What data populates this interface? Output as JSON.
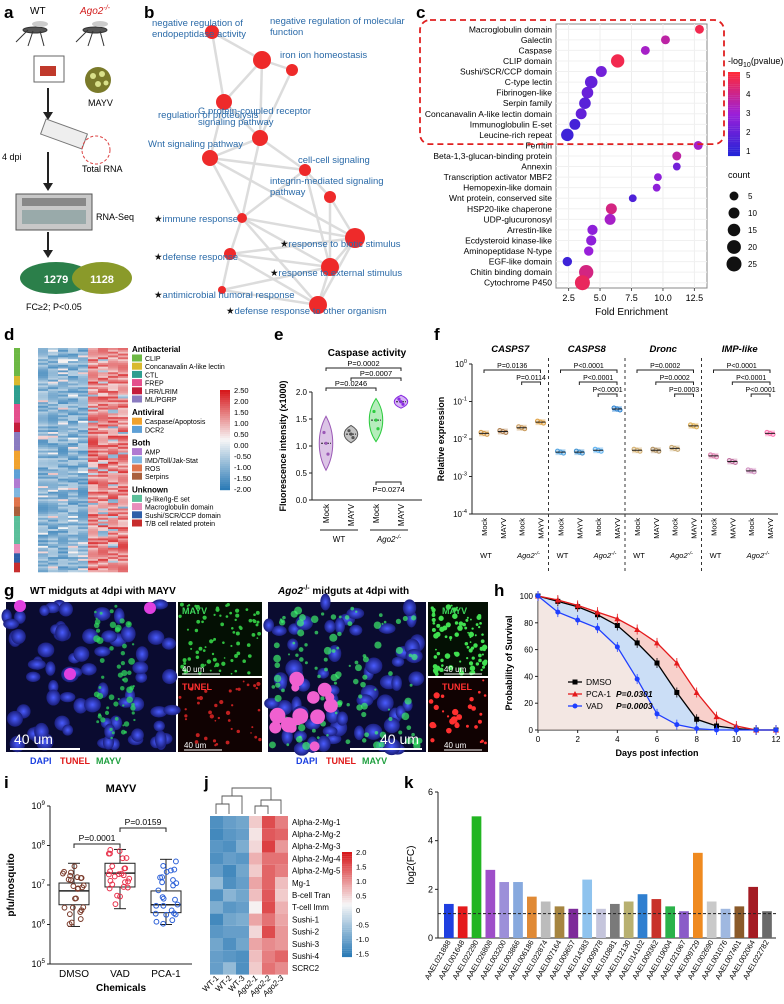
{
  "panels": {
    "a": {
      "letter": "a",
      "wt": "WT",
      "ago2": "Ago2",
      "ago2_sup": "-/-",
      "virus": "MAYV",
      "time": "4 dpi",
      "total_rna": "Total RNA",
      "rnaseq": "RNA-Seq",
      "up_count": "1279",
      "down_count": "1128",
      "criteria": "FC≥2; P<0.05"
    },
    "b": {
      "letter": "b",
      "nodes": [
        {
          "label": "negative regulation of endopeptidase activity",
          "star": false
        },
        {
          "label": "negative regulation of molecular function",
          "star": false
        },
        {
          "label": "iron ion homeostasis",
          "star": false
        },
        {
          "label": "regulation of proteolysis",
          "star": false
        },
        {
          "label": "G protein-coupled receptor signaling pathway",
          "star": false
        },
        {
          "label": "Wnt signaling pathway",
          "star": false
        },
        {
          "label": "cell-cell signaling",
          "star": false
        },
        {
          "label": "integrin-mediated signaling pathway",
          "star": false
        },
        {
          "label": "immune response",
          "star": true
        },
        {
          "label": "response to biotic stimulus",
          "star": true
        },
        {
          "label": "defense response",
          "star": true
        },
        {
          "label": "response to external stimulus",
          "star": true
        },
        {
          "label": "antimicrobial humoral response",
          "star": true
        },
        {
          "label": "defense response to other organism",
          "star": true
        }
      ]
    },
    "c": {
      "letter": "c",
      "chart_data": {
        "type": "scatter",
        "xlabel": "Fold Enrichment",
        "xlim": [
          1.5,
          13.5
        ],
        "xticks": [
          "2.5",
          "5.0",
          "7.5",
          "10.0",
          "12.5"
        ],
        "categories": [
          "Macroglobulin domain",
          "Galectin",
          "Caspase",
          "CLIP domain",
          "Sushi/SCR/CCP domain",
          "C-type lectin",
          "Fibrinogen-like",
          "Serpin family",
          "Concanavalin A-like lectin domain",
          "Immunoglobulin E-set",
          "Leucine-rich repeat",
          "Ferritin",
          "Beta-1,3-glucan-binding protein",
          "Annexin",
          "Transcription activator MBF2",
          "Hemopexin-like domain",
          "Wnt protein, conserved site",
          "HSP20-like chaperone",
          "UDP-glucuronosyl",
          "Arrestin-like",
          "Ecdysteroid kinase-like",
          "Aminopeptidase N-type",
          "EGF-like domain",
          "Chitin binding domain",
          "Cytochrome P450"
        ],
        "fold": [
          12.9,
          10.2,
          8.6,
          6.4,
          5.1,
          4.3,
          4.0,
          3.8,
          3.5,
          3.0,
          2.4,
          12.8,
          11.1,
          11.1,
          9.6,
          9.5,
          7.6,
          5.9,
          5.8,
          4.4,
          4.3,
          4.1,
          2.4,
          3.9,
          3.6
        ],
        "count": [
          5,
          5,
          5,
          18,
          10,
          15,
          12,
          12,
          10,
          10,
          15,
          5,
          5,
          3,
          3,
          3,
          3,
          10,
          10,
          8,
          8,
          6,
          6,
          22,
          25
        ],
        "neglogp": [
          5.2,
          4.0,
          3.5,
          5.2,
          2.5,
          2.2,
          2.3,
          2.0,
          2.2,
          1.6,
          1.5,
          3.5,
          4.0,
          2.5,
          3.0,
          3.0,
          1.8,
          4.5,
          3.5,
          3.0,
          3.0,
          3.2,
          1.5,
          4.5,
          5.0
        ],
        "color_legend": {
          "title_prefix": "-log",
          "title_sub": "10",
          "title_suffix": "(pvalue)",
          "ticks": [
            "5",
            "4",
            "3",
            "2",
            "1"
          ]
        },
        "size_legend": {
          "title": "count",
          "ticks": [
            "5",
            "10",
            "15",
            "20",
            "25"
          ]
        }
      }
    },
    "d": {
      "letter": "d",
      "scale_ticks": [
        "2.50",
        "2.00",
        "1.50",
        "1.00",
        "0.50",
        "0.00",
        "-0.50",
        "-1.00",
        "-1.50",
        "-2.00"
      ],
      "groups": [
        {
          "title": "Antibacterial",
          "items": [
            {
              "label": "CLIP",
              "color": "#6db844"
            },
            {
              "label": "Concanavalin A-like lectin",
              "color": "#d9b92e"
            },
            {
              "label": "CTL",
              "color": "#2e9e8f"
            },
            {
              "label": "FREP",
              "color": "#e44f8c"
            },
            {
              "label": "LRR/LRIM",
              "color": "#c41d3b"
            },
            {
              "label": "ML/PGRP",
              "color": "#8a7bc0"
            }
          ]
        },
        {
          "title": "Antiviral",
          "items": [
            {
              "label": "Caspase/Apoptosis",
              "color": "#f1a22d"
            },
            {
              "label": "DCR2",
              "color": "#5ea0d6"
            }
          ]
        },
        {
          "title": "Both",
          "items": [
            {
              "label": "AMP",
              "color": "#b07ad1"
            },
            {
              "label": "IMD/Toll/Jak-Stat",
              "color": "#7fb6e0"
            },
            {
              "label": "ROS",
              "color": "#e0744b"
            },
            {
              "label": "Serpins",
              "color": "#a95f3b"
            }
          ]
        },
        {
          "title": "Unknown",
          "items": [
            {
              "label": "Ig-like/Ig-E set",
              "color": "#5bbf9a"
            },
            {
              "label": "Macroglobulin domain",
              "color": "#e98dbb"
            },
            {
              "label": "Sushi/SCR/CCP domain",
              "color": "#2f5fa8"
            },
            {
              "label": "T/B cell related protein",
              "color": "#c72d2d"
            }
          ]
        }
      ]
    },
    "e": {
      "letter": "e",
      "chart_data": {
        "type": "violin",
        "title": "Caspase activity",
        "ylabel": "Fluorescence intensity (x1000)",
        "ylim": [
          0.0,
          2.0
        ],
        "yticks": [
          "0.0",
          "0.5",
          "1.0",
          "1.5",
          "2.0"
        ],
        "categories": [
          "Mock",
          "MAYV",
          "Mock",
          "MAYV"
        ],
        "groups": [
          "WT",
          "Ago2"
        ],
        "group_sup": "-/-",
        "values": [
          1.05,
          1.22,
          1.48,
          1.82
        ],
        "pvalues": [
          "P=0.0002",
          "P=0.0007",
          "P=0.0246",
          "P=0.0274"
        ]
      }
    },
    "f": {
      "letter": "f",
      "chart_data": {
        "type": "dotplot",
        "ylabel": "Relative expression",
        "genes": [
          "CASPS7",
          "CASPS8",
          "Dronc",
          "IMP-like"
        ],
        "categories": [
          "Mock",
          "MAYV",
          "Mock",
          "MAYV"
        ],
        "groups": [
          "WT",
          "Ago2"
        ],
        "group_sup": "-/-",
        "ytick_base": "10",
        "ytick_exp": [
          "0",
          "-1",
          "-2",
          "-3",
          "-4"
        ],
        "values_log10": [
          [
            -1.85,
            -1.8,
            -1.7,
            -1.55
          ],
          [
            -2.35,
            -2.35,
            -2.3,
            -1.2
          ],
          [
            -2.3,
            -2.3,
            -2.25,
            -1.65
          ],
          [
            -2.45,
            -2.6,
            -2.85,
            -1.85
          ]
        ],
        "pvalues": [
          [
            "P=0.0136",
            "P=0.0114"
          ],
          [
            "P<0.0001",
            "P<0.0001",
            "P<0.0001"
          ],
          [
            "P=0.0002",
            "P=0.0002",
            "P=0.0003"
          ],
          [
            "P<0.0001",
            "P<0.0001",
            "P<0.0001"
          ]
        ]
      }
    },
    "g": {
      "letter": "g",
      "wt_title": "WT midguts at 4dpi with MAYV",
      "ago_title_pre": "Ago2",
      "ago_title_sup": "-/-",
      "ago_title_post": " midguts at 4dpi with",
      "inset_mayv": "MAYV",
      "inset_tunel": "TUNEL",
      "scale_big": "40 um",
      "scale_small": "40 um",
      "legend": [
        "DAPI",
        "TUNEL",
        "MAYV"
      ]
    },
    "h": {
      "letter": "h",
      "chart_data": {
        "type": "line",
        "xlabel": "Days post infection",
        "ylabel": "Probability of Survival",
        "xlim": [
          0,
          12
        ],
        "ylim": [
          0,
          100
        ],
        "xticks": [
          "0",
          "2",
          "4",
          "6",
          "8",
          "10",
          "12"
        ],
        "yticks": [
          "0",
          "20",
          "40",
          "60",
          "80",
          "100"
        ],
        "x": [
          0,
          1,
          2,
          3,
          4,
          5,
          6,
          7,
          8,
          9,
          10,
          11,
          12
        ],
        "series": [
          {
            "name": "DMSO",
            "values": [
              100,
              96,
              92,
              86,
              78,
              65,
              50,
              28,
              8,
              3,
              1,
              0,
              0
            ],
            "color": "#000000"
          },
          {
            "name": "PCA-1",
            "values": [
              100,
              97,
              93,
              88,
              83,
              75,
              65,
              50,
              28,
              10,
              3,
              0,
              0
            ],
            "color": "#e41a1c"
          },
          {
            "name": "VAD",
            "values": [
              100,
              88,
              82,
              76,
              62,
              38,
              12,
              4,
              1,
              0,
              0,
              0,
              0
            ],
            "color": "#1f3fff"
          }
        ],
        "pvalues": [
          "P=0.0301",
          "P=0.0003"
        ]
      }
    },
    "i": {
      "letter": "i",
      "chart_data": {
        "type": "box",
        "title": "MAYV",
        "xlabel": "Chemicals",
        "ylabel": "pfu/mosquito",
        "categories": [
          "DMSO",
          "VAD",
          "PCA-1"
        ],
        "ytick_base": "10",
        "ytick_exp": [
          "9",
          "8",
          "7",
          "6",
          "5"
        ],
        "median_log10": [
          6.85,
          7.3,
          6.5
        ],
        "q1_log10": [
          6.5,
          6.95,
          6.3
        ],
        "q3_log10": [
          7.05,
          7.55,
          6.85
        ],
        "min_log10": [
          5.95,
          6.4,
          6.0
        ],
        "max_log10": [
          7.55,
          7.9,
          7.65
        ],
        "pvalues": [
          "P=0.0001",
          "P=0.0159"
        ]
      }
    },
    "j": {
      "letter": "j",
      "rows": [
        "Alpha-2-Mg-1",
        "Alpha-2-Mg-2",
        "Alpha-2-Mg-3",
        "Alpha-2-Mg-4",
        "Alpha-2-Mg-5",
        "Mg-1",
        "B-cell Tran",
        "T-cell Imm",
        "Sushi-1",
        "Sushi-2",
        "Sushi-3",
        "Sushi-4",
        "SCRC2"
      ],
      "cols": [
        "WT-1",
        "WT-2",
        "WT-3",
        "Ago2-1",
        "Ago2-2",
        "Ago2-3"
      ],
      "scale_ticks": [
        "2.0",
        "1.5",
        "1.0",
        "0.5",
        "0",
        "-0.5",
        "-1.0",
        "-1.5"
      ],
      "values": [
        [
          -1.2,
          -1.0,
          -0.9,
          0.6,
          1.6,
          1.2
        ],
        [
          -1.3,
          -1.1,
          -1.0,
          0.4,
          1.5,
          1.4
        ],
        [
          -1.1,
          -1.2,
          -0.8,
          0.5,
          1.7,
          1.0
        ],
        [
          -1.2,
          -1.0,
          -1.1,
          0.8,
          1.3,
          1.3
        ],
        [
          -1.0,
          -1.3,
          -0.9,
          0.6,
          1.4,
          1.2
        ],
        [
          -0.6,
          -1.2,
          -1.0,
          0.9,
          1.4,
          0.7
        ],
        [
          -1.2,
          -0.7,
          -0.9,
          0.7,
          1.5,
          0.6
        ],
        [
          -0.8,
          -1.1,
          -1.0,
          0.3,
          1.6,
          0.8
        ],
        [
          -1.3,
          -0.9,
          -0.8,
          0.9,
          1.3,
          0.9
        ],
        [
          -1.1,
          -1.0,
          -1.0,
          0.5,
          1.6,
          1.0
        ],
        [
          -0.9,
          -1.2,
          -0.9,
          0.9,
          1.1,
          1.0
        ],
        [
          -1.0,
          -1.1,
          -1.2,
          0.7,
          1.2,
          1.4
        ],
        [
          -1.0,
          -0.6,
          -1.2,
          0.6,
          1.3,
          1.1
        ]
      ]
    },
    "k": {
      "letter": "k",
      "chart_data": {
        "type": "bar",
        "ylabel": "log2(FC)",
        "ylim": [
          0,
          6
        ],
        "yticks": [
          "0",
          "2",
          "4",
          "6"
        ],
        "categories": [
          "AAEL021888",
          "AAEL001648",
          "AAEL022290",
          "AAEL026808",
          "AAEL003200",
          "AAEL003866",
          "AAEL006186",
          "AAEL022874",
          "AAEL007164",
          "AAEL009657",
          "AAEL014383",
          "AAEL009978",
          "AAEL010881",
          "AAEL012130",
          "AAEL014102",
          "AAEL009362",
          "AAEL019004",
          "AAEL021067",
          "AAEL009729",
          "AAEL002690",
          "AAEL001076",
          "AAEL007401",
          "AAEL002064",
          "AAEL022782"
        ],
        "values": [
          1.4,
          1.3,
          5.0,
          2.8,
          2.3,
          2.3,
          1.7,
          1.5,
          1.3,
          1.2,
          2.4,
          1.2,
          1.4,
          1.5,
          1.8,
          1.6,
          1.3,
          1.1,
          3.5,
          1.5,
          1.2,
          1.3,
          2.1,
          1.1
        ],
        "colors": [
          "#1f3fe0",
          "#e41a1c",
          "#22b522",
          "#9e4ec9",
          "#9c8fd9",
          "#87a9de",
          "#e08a35",
          "#bcbcbc",
          "#a68540",
          "#7d2a9a",
          "#8fc3ee",
          "#c5c5dc",
          "#7a7a7a",
          "#b8b070",
          "#2f7fd0",
          "#c8322b",
          "#2ab24a",
          "#8a5cc8",
          "#ef8a20",
          "#c9c9c9",
          "#9fb8e0",
          "#8a5a2a",
          "#a41b23",
          "#6a6a6a"
        ],
        "threshold": 1.0
      }
    }
  }
}
